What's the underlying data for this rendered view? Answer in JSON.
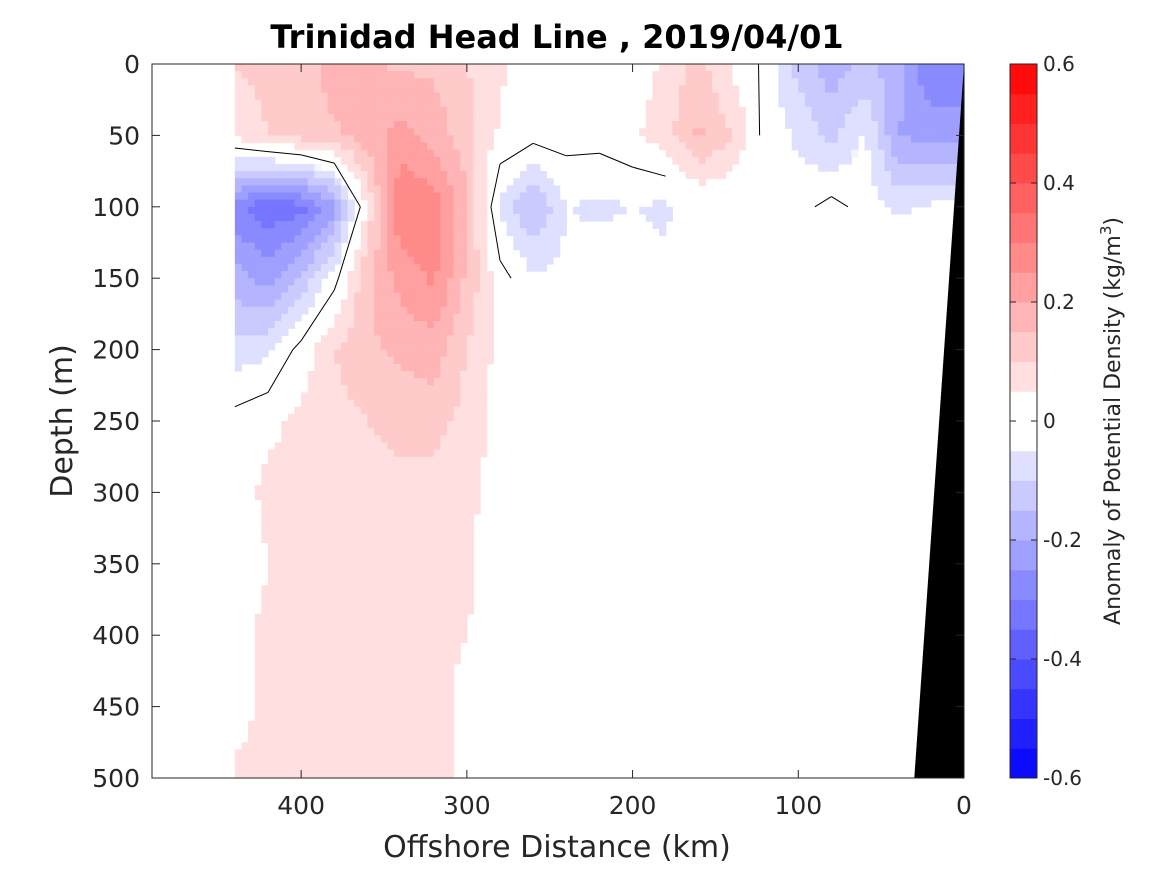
{
  "chart_data": {
    "type": "heatmap",
    "subtype": "filled-contour section",
    "title": "Trinidad Head Line , 2019/04/01",
    "xlabel": "Offshore Distance (km)",
    "ylabel": "Depth (m)",
    "xlim": [
      490,
      0
    ],
    "x_reversed": true,
    "ylim": [
      0,
      500
    ],
    "y_reversed": true,
    "xticks": [
      400,
      300,
      200,
      100,
      0
    ],
    "yticks": [
      0,
      50,
      100,
      150,
      200,
      250,
      300,
      350,
      400,
      450,
      500
    ],
    "grid": false,
    "colorbar": {
      "label": "Anomaly of Potential Density (kg/m",
      "label_superscript": "3",
      "label_close": ")",
      "range": [
        -0.6,
        0.6
      ],
      "ticks": [
        "0.6",
        "0.4",
        "0.2",
        "0",
        "-0.2",
        "-0.4",
        "-0.6"
      ],
      "levels": [
        -0.6,
        -0.55,
        -0.5,
        -0.45,
        -0.4,
        -0.35,
        -0.3,
        -0.25,
        -0.2,
        -0.15,
        -0.1,
        -0.05,
        0,
        0.05,
        0.1,
        0.15,
        0.2,
        0.25,
        0.3,
        0.35,
        0.4,
        0.45,
        0.5,
        0.55,
        0.6
      ],
      "position": "right"
    },
    "field_grid": {
      "x": [
        440,
        420,
        400,
        380,
        360,
        340,
        320,
        300,
        280,
        260,
        240,
        220,
        200,
        180,
        160,
        140,
        120,
        100,
        80,
        60,
        40,
        20,
        0
      ],
      "y": [
        0,
        50,
        100,
        150,
        200,
        250,
        300,
        350,
        400,
        450,
        500
      ],
      "values": [
        [
          0.1,
          0.12,
          0.12,
          0.18,
          0.16,
          0.14,
          0.14,
          0.1,
          0.06,
          0.02,
          0.0,
          0.0,
          0.02,
          0.06,
          0.12,
          0.04,
          -0.01,
          -0.12,
          -0.18,
          -0.14,
          -0.18,
          -0.3,
          -0.3
        ],
        [
          0.06,
          0.1,
          0.12,
          0.14,
          0.18,
          0.22,
          0.18,
          0.12,
          0.04,
          0.02,
          0.02,
          0.02,
          0.04,
          0.08,
          0.16,
          0.1,
          -0.02,
          -0.06,
          -0.12,
          -0.04,
          -0.2,
          -0.22,
          -0.22
        ],
        [
          -0.28,
          -0.34,
          -0.32,
          -0.22,
          0.06,
          0.3,
          0.28,
          0.16,
          -0.06,
          -0.16,
          -0.05,
          -0.06,
          -0.05,
          -0.06,
          0.0,
          0.0,
          -0.01,
          -0.02,
          0.02,
          -0.02,
          -0.06,
          -0.04,
          -0.04
        ],
        [
          -0.18,
          -0.22,
          -0.14,
          -0.02,
          0.14,
          0.22,
          0.26,
          0.14,
          0.02,
          -0.04,
          -0.03,
          -0.02,
          -0.02,
          -0.04,
          0.0,
          0.0,
          -0.01,
          -0.01,
          0.0,
          0.0,
          0.0,
          0.0,
          0.0
        ],
        [
          -0.08,
          -0.06,
          0.02,
          0.1,
          0.14,
          0.16,
          0.18,
          0.1,
          0.03,
          0.0,
          -0.01,
          -0.01,
          0.0,
          0.0,
          0.0,
          0.0,
          0.0,
          0.0,
          0.0,
          0.0,
          0.0,
          0.0,
          0.0
        ],
        [
          0.02,
          0.04,
          0.06,
          0.08,
          0.1,
          0.12,
          0.12,
          0.08,
          0.03,
          0.0,
          0.0,
          0.0,
          0.0,
          0.0,
          0.0,
          0.0,
          0.0,
          0.0,
          0.0,
          0.0,
          0.0,
          0.0,
          0.0
        ],
        [
          0.03,
          0.06,
          0.06,
          0.07,
          0.08,
          0.08,
          0.08,
          0.06,
          0.03,
          0.0,
          0.0,
          0.0,
          0.0,
          0.0,
          0.0,
          0.0,
          0.0,
          0.0,
          0.0,
          0.0,
          0.0,
          0.0,
          0.0
        ],
        [
          0.02,
          0.05,
          0.06,
          0.07,
          0.08,
          0.08,
          0.07,
          0.06,
          0.02,
          0.0,
          0.0,
          0.0,
          0.0,
          0.0,
          0.0,
          0.0,
          0.0,
          0.0,
          0.0,
          0.0,
          0.0,
          0.0,
          0.0
        ],
        [
          0.04,
          0.06,
          0.07,
          0.07,
          0.08,
          0.07,
          0.06,
          0.05,
          0.02,
          0.0,
          0.0,
          0.0,
          0.0,
          0.0,
          0.0,
          0.0,
          0.0,
          0.0,
          0.0,
          0.0,
          0.0,
          0.0,
          0.0
        ],
        [
          0.03,
          0.06,
          0.07,
          0.07,
          0.07,
          0.07,
          0.06,
          0.04,
          0.01,
          0.0,
          0.0,
          0.0,
          0.0,
          0.0,
          0.0,
          0.0,
          0.0,
          0.0,
          0.0,
          0.0,
          0.0,
          0.0,
          0.0
        ],
        [
          0.06,
          0.07,
          0.07,
          0.06,
          0.06,
          0.07,
          0.06,
          0.04,
          0.01,
          0.0,
          0.0,
          0.0,
          0.0,
          0.0,
          0.0,
          0.0,
          0.0,
          0.0,
          0.0,
          0.0,
          0.0,
          0.0,
          0.0
        ]
      ]
    },
    "land_mask": [
      [
        0,
        0
      ],
      [
        0,
        500
      ],
      [
        30,
        500
      ]
    ],
    "colors": {
      "positive": "#ff0000",
      "negative": "#0000ff",
      "zero": "#ffffff",
      "contour_line": "#000000",
      "land": "#000000"
    }
  }
}
